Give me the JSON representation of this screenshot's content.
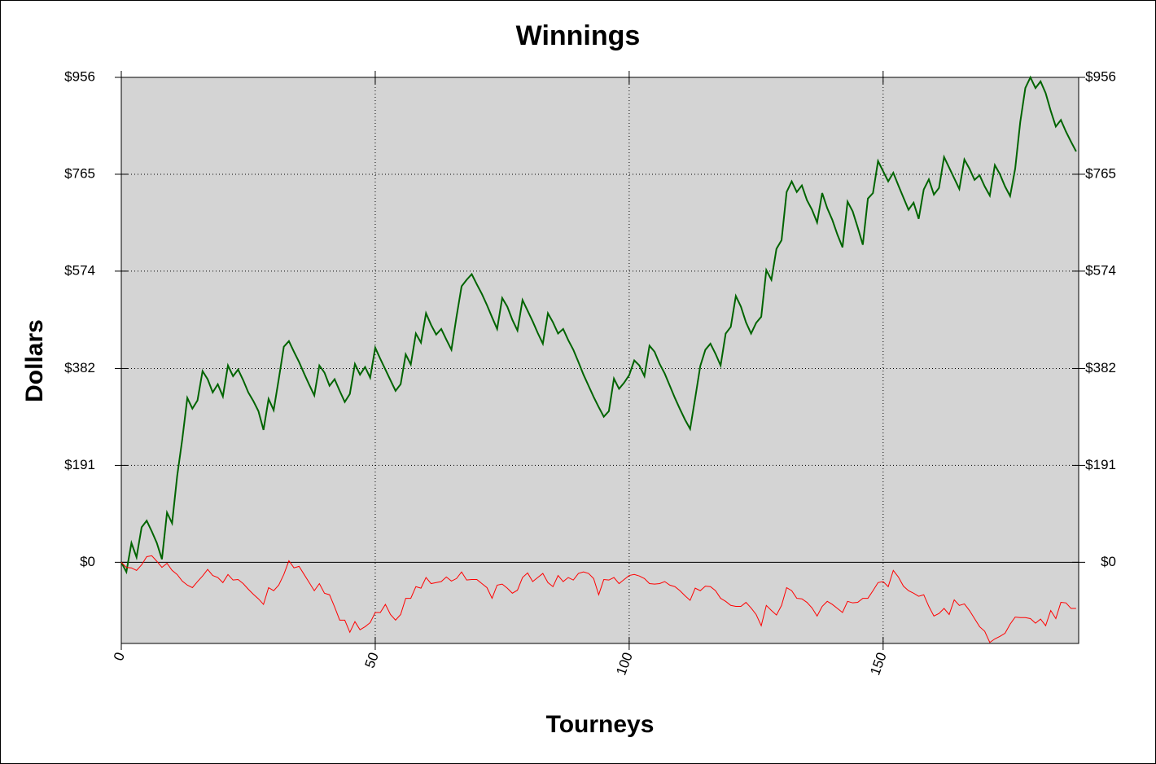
{
  "chart_data": {
    "type": "line",
    "title": "Winnings",
    "xlabel": "Tourneys",
    "ylabel": "Dollars",
    "x": [
      0,
      1,
      2,
      3,
      4,
      5,
      6,
      7,
      8,
      9,
      10,
      11,
      12,
      13,
      14,
      15,
      16,
      17,
      18,
      19,
      20,
      21,
      22,
      23,
      24,
      25,
      26,
      27,
      28,
      29,
      30,
      31,
      32,
      33,
      34,
      35,
      36,
      37,
      38,
      39,
      40,
      41,
      42,
      43,
      44,
      45,
      46,
      47,
      48,
      49,
      50,
      51,
      52,
      53,
      54,
      55,
      56,
      57,
      58,
      59,
      60,
      61,
      62,
      63,
      64,
      65,
      66,
      67,
      68,
      69,
      70,
      71,
      72,
      73,
      74,
      75,
      76,
      77,
      78,
      79,
      80,
      81,
      82,
      83,
      84,
      85,
      86,
      87,
      88,
      89,
      90,
      91,
      92,
      93,
      94,
      95,
      96,
      97,
      98,
      99,
      100,
      101,
      102,
      103,
      104,
      105,
      106,
      107,
      108,
      109,
      110,
      111,
      112,
      113,
      114,
      115,
      116,
      117,
      118,
      119,
      120,
      121,
      122,
      123,
      124,
      125,
      126,
      127,
      128,
      129,
      130,
      131,
      132,
      133,
      134,
      135,
      136,
      137,
      138,
      139,
      140,
      141,
      142,
      143,
      144,
      145,
      146,
      147,
      148,
      149,
      150,
      151,
      152,
      153,
      154,
      155,
      156,
      157,
      158,
      159,
      160,
      161,
      162,
      163,
      164,
      165,
      166,
      167,
      168,
      169,
      170,
      171,
      172,
      173,
      174,
      175,
      176,
      177,
      178,
      179,
      180,
      181,
      182,
      183,
      184,
      185,
      186,
      187,
      188
    ],
    "series": [
      {
        "color": "#006400",
        "values": [
          0,
          -19,
          38,
          10,
          69,
          82,
          61,
          38,
          6,
          98,
          77,
          170,
          242,
          324,
          303,
          319,
          377,
          361,
          335,
          351,
          327,
          388,
          367,
          380,
          359,
          335,
          318,
          298,
          261,
          322,
          300,
          361,
          425,
          436,
          415,
          395,
          372,
          350,
          329,
          388,
          374,
          348,
          361,
          338,
          316,
          332,
          391,
          370,
          385,
          364,
          423,
          401,
          380,
          359,
          338,
          351,
          410,
          390,
          451,
          433,
          491,
          468,
          449,
          460,
          439,
          419,
          484,
          544,
          557,
          568,
          548,
          529,
          507,
          483,
          460,
          521,
          504,
          478,
          457,
          517,
          496,
          475,
          452,
          431,
          491,
          473,
          451,
          460,
          438,
          419,
          395,
          370,
          348,
          326,
          306,
          287,
          298,
          362,
          342,
          354,
          369,
          398,
          388,
          367,
          427,
          415,
          391,
          372,
          348,
          324,
          302,
          281,
          263,
          324,
          387,
          419,
          431,
          411,
          388,
          451,
          464,
          525,
          504,
          473,
          451,
          472,
          484,
          576,
          557,
          618,
          635,
          730,
          751,
          730,
          743,
          714,
          695,
          670,
          728,
          698,
          675,
          646,
          621,
          711,
          692,
          660,
          626,
          717,
          728,
          791,
          771,
          751,
          768,
          743,
          719,
          695,
          709,
          677,
          735,
          755,
          725,
          738,
          799,
          778,
          757,
          736,
          794,
          776,
          754,
          763,
          741,
          723,
          783,
          765,
          741,
          722,
          776,
          868,
          935,
          956,
          935,
          948,
          925,
          890,
          859,
          872,
          849,
          829,
          810
        ]
      },
      {
        "color": "#ff0000",
        "values": [
          0,
          -10,
          -11,
          -16,
          -5,
          11,
          13,
          2,
          -10,
          -2,
          -16,
          -24,
          -37,
          -45,
          -50,
          -38,
          -27,
          -14,
          -26,
          -30,
          -40,
          -24,
          -35,
          -34,
          -42,
          -53,
          -63,
          -72,
          -83,
          -50,
          -56,
          -45,
          -24,
          3,
          -11,
          -8,
          -24,
          -40,
          -56,
          -42,
          -61,
          -64,
          -88,
          -114,
          -114,
          -138,
          -117,
          -133,
          -127,
          -119,
          -99,
          -99,
          -83,
          -103,
          -114,
          -103,
          -71,
          -71,
          -48,
          -51,
          -30,
          -42,
          -40,
          -38,
          -29,
          -37,
          -32,
          -19,
          -35,
          -34,
          -34,
          -42,
          -50,
          -71,
          -45,
          -43,
          -51,
          -61,
          -55,
          -30,
          -21,
          -38,
          -30,
          -22,
          -40,
          -48,
          -26,
          -38,
          -30,
          -35,
          -22,
          -19,
          -22,
          -32,
          -64,
          -34,
          -35,
          -30,
          -42,
          -34,
          -26,
          -24,
          -27,
          -32,
          -42,
          -43,
          -42,
          -38,
          -45,
          -48,
          -56,
          -66,
          -75,
          -51,
          -56,
          -47,
          -48,
          -56,
          -71,
          -77,
          -85,
          -87,
          -87,
          -79,
          -90,
          -103,
          -125,
          -85,
          -95,
          -104,
          -85,
          -50,
          -56,
          -71,
          -72,
          -79,
          -90,
          -106,
          -87,
          -77,
          -83,
          -91,
          -99,
          -77,
          -80,
          -79,
          -71,
          -71,
          -56,
          -40,
          -38,
          -48,
          -16,
          -29,
          -47,
          -56,
          -61,
          -67,
          -64,
          -87,
          -106,
          -101,
          -91,
          -103,
          -74,
          -85,
          -82,
          -95,
          -111,
          -127,
          -136,
          -158,
          -151,
          -146,
          -140,
          -122,
          -108,
          -109,
          -109,
          -111,
          -120,
          -112,
          -125,
          -95,
          -111,
          -79,
          -80,
          -91,
          -91
        ]
      }
    ],
    "xlim": [
      0,
      188.5
    ],
    "xticks": [
      0,
      50,
      100,
      150
    ],
    "ylim": [
      -160,
      956
    ],
    "yticks": [
      {
        "value": 0,
        "label": "$0"
      },
      {
        "value": 191,
        "label": "$191"
      },
      {
        "value": 382,
        "label": "$382"
      },
      {
        "value": 574,
        "label": "$574"
      },
      {
        "value": 765,
        "label": "$765"
      },
      {
        "value": 956,
        "label": "$956"
      }
    ],
    "grid": true
  }
}
